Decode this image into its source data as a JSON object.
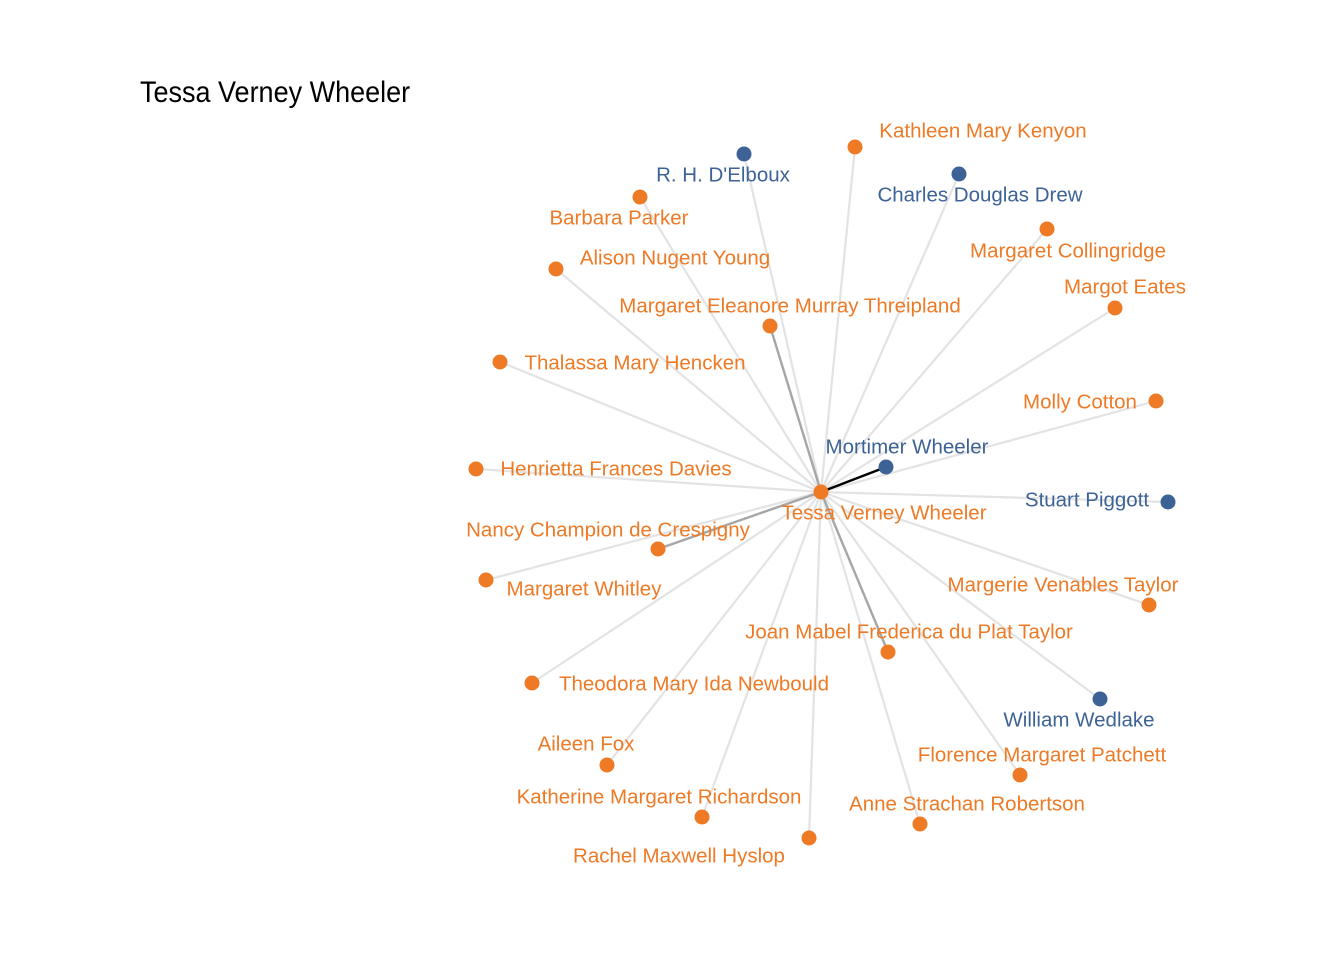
{
  "title": "Tessa Verney Wheeler",
  "colors": {
    "female": "#ee7a26",
    "male": "#3d6396",
    "edge_light": "#e3e3e3",
    "edge_medium": "#a6a6a6",
    "edge_dark": "#000000"
  },
  "center": {
    "id": "tessa-verney-wheeler",
    "label": "Tessa Verney Wheeler",
    "gender": "female"
  },
  "nodes": [
    {
      "id": "r-h-delboux",
      "label": "R. H. D'Elboux",
      "gender": "male",
      "edge": "light"
    },
    {
      "id": "kathleen-mary-kenyon",
      "label": "Kathleen Mary Kenyon",
      "gender": "female",
      "edge": "light"
    },
    {
      "id": "charles-douglas-drew",
      "label": "Charles Douglas Drew",
      "gender": "male",
      "edge": "light"
    },
    {
      "id": "barbara-parker",
      "label": "Barbara Parker",
      "gender": "female",
      "edge": "light"
    },
    {
      "id": "margaret-collingridge",
      "label": "Margaret Collingridge",
      "gender": "female",
      "edge": "light"
    },
    {
      "id": "alison-nugent-young",
      "label": "Alison Nugent Young",
      "gender": "female",
      "edge": "light"
    },
    {
      "id": "margot-eates",
      "label": "Margot Eates",
      "gender": "female",
      "edge": "light"
    },
    {
      "id": "margaret-eleanore-murray-threipland",
      "label": "Margaret Eleanore Murray Threipland",
      "gender": "female",
      "edge": "medium"
    },
    {
      "id": "thalassa-mary-hencken",
      "label": "Thalassa Mary Hencken",
      "gender": "female",
      "edge": "light"
    },
    {
      "id": "molly-cotton",
      "label": "Molly Cotton",
      "gender": "female",
      "edge": "light"
    },
    {
      "id": "mortimer-wheeler",
      "label": "Mortimer Wheeler",
      "gender": "male",
      "edge": "dark"
    },
    {
      "id": "henrietta-frances-davies",
      "label": "Henrietta Frances Davies",
      "gender": "female",
      "edge": "light"
    },
    {
      "id": "stuart-piggott",
      "label": "Stuart Piggott",
      "gender": "male",
      "edge": "light"
    },
    {
      "id": "nancy-champion-de-crespigny",
      "label": "Nancy Champion de Crespigny",
      "gender": "female",
      "edge": "medium"
    },
    {
      "id": "margaret-whitley",
      "label": "Margaret Whitley",
      "gender": "female",
      "edge": "light"
    },
    {
      "id": "margerie-venables-taylor",
      "label": "Margerie Venables Taylor",
      "gender": "female",
      "edge": "light"
    },
    {
      "id": "joan-mabel-frederica-du-plat-taylor",
      "label": "Joan Mabel Frederica du Plat Taylor",
      "gender": "female",
      "edge": "medium"
    },
    {
      "id": "theodora-mary-ida-newbould",
      "label": "Theodora Mary Ida Newbould",
      "gender": "female",
      "edge": "light"
    },
    {
      "id": "william-wedlake",
      "label": "William Wedlake",
      "gender": "male",
      "edge": "light"
    },
    {
      "id": "aileen-fox",
      "label": "Aileen Fox",
      "gender": "female",
      "edge": "light"
    },
    {
      "id": "florence-margaret-patchett",
      "label": "Florence Margaret Patchett",
      "gender": "female",
      "edge": "light"
    },
    {
      "id": "katherine-margaret-richardson",
      "label": "Katherine Margaret Richardson",
      "gender": "female",
      "edge": "light"
    },
    {
      "id": "anne-strachan-robertson",
      "label": "Anne Strachan Robertson",
      "gender": "female",
      "edge": "light"
    },
    {
      "id": "rachel-maxwell-hyslop",
      "label": "Rachel Maxwell Hyslop",
      "gender": "female",
      "edge": "light"
    }
  ]
}
